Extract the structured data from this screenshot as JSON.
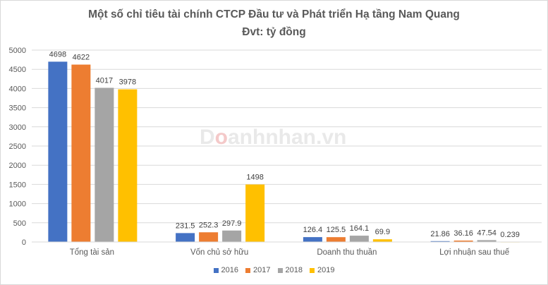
{
  "chart_data": {
    "type": "bar",
    "title": "Một số chỉ tiêu tài chính CTCP Đầu tư và Phát triển Hạ tầng Nam Quang",
    "subtitle": "Đvt: tỷ đồng",
    "categories": [
      "Tổng tài sản",
      "Vốn chủ sở hữu",
      "Doanh thu thuần",
      "Lợi nhuận sau thuế"
    ],
    "series": [
      {
        "name": "2016",
        "color": "#4472c4",
        "values": [
          4698,
          231.5,
          126.4,
          21.86
        ],
        "labels": [
          "4698",
          "231.5",
          "126.4",
          "21.86"
        ]
      },
      {
        "name": "2017",
        "color": "#ed7d31",
        "values": [
          4622,
          252.3,
          125.5,
          36.16
        ],
        "labels": [
          "4622",
          "252.3",
          "125.5",
          "36.16"
        ]
      },
      {
        "name": "2018",
        "color": "#a5a5a5",
        "values": [
          4017,
          297.9,
          164.1,
          47.54
        ],
        "labels": [
          "4017",
          "297.9",
          "164.1",
          "47.54"
        ]
      },
      {
        "name": "2019",
        "color": "#ffc000",
        "values": [
          3978,
          1498,
          69.9,
          0.239
        ],
        "labels": [
          "3978",
          "1498",
          "69.9",
          "0.239"
        ]
      }
    ],
    "ylim": [
      0,
      5000
    ],
    "yticks": [
      "0",
      "500",
      "1000",
      "1500",
      "2000",
      "2500",
      "3000",
      "3500",
      "4000",
      "4500",
      "5000"
    ],
    "grid": true,
    "legend": "bottom"
  },
  "watermark": {
    "prefix": "D",
    "o": "o",
    "rest": "anhnhan.vn"
  }
}
